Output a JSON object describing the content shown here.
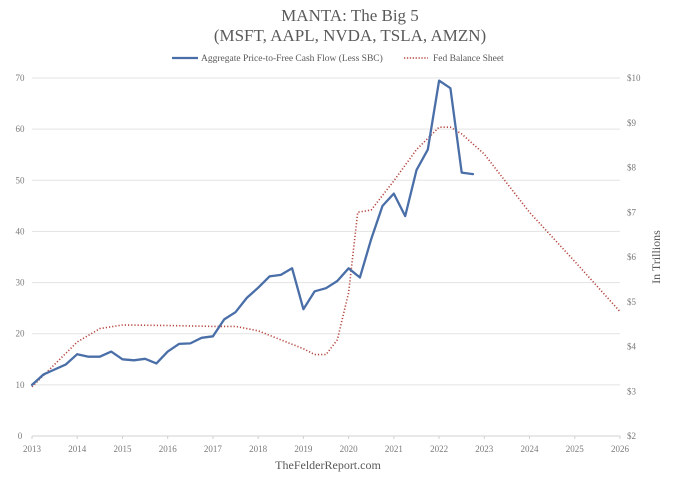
{
  "chart_data": {
    "type": "line",
    "title": "MANTA: The Big 5",
    "subtitle": "(MSFT, AAPL, NVDA, TSLA, AMZN)",
    "source": "TheFelderReport.com",
    "legend_position": "top-center",
    "grid": true,
    "x": {
      "range": [
        2013,
        2026
      ],
      "ticks": [
        "2013",
        "2014",
        "2015",
        "2016",
        "2017",
        "2018",
        "2019",
        "2020",
        "2021",
        "2022",
        "2023",
        "2024",
        "2025",
        "2026"
      ]
    },
    "y_left": {
      "label": "",
      "range": [
        0,
        70
      ],
      "ticks": [
        "0",
        "10",
        "20",
        "30",
        "40",
        "50",
        "60",
        "70"
      ]
    },
    "y_right": {
      "label": "In Trillions",
      "range": [
        2,
        10
      ],
      "ticks": [
        "$2",
        "$3",
        "$4",
        "$5",
        "$6",
        "$7",
        "$8",
        "$9",
        "$10"
      ]
    },
    "series": [
      {
        "name": "Aggregate Price-to-Free Cash Flow (Less SBC)",
        "axis": "left",
        "style": "solid",
        "color": "#4a6fa8",
        "points": [
          [
            2013.0,
            10.0
          ],
          [
            2013.25,
            12.0
          ],
          [
            2013.5,
            13.0
          ],
          [
            2013.75,
            14.0
          ],
          [
            2014.0,
            16.0
          ],
          [
            2014.25,
            15.5
          ],
          [
            2014.5,
            15.5
          ],
          [
            2014.75,
            16.5
          ],
          [
            2015.0,
            15.0
          ],
          [
            2015.25,
            14.8
          ],
          [
            2015.5,
            15.1
          ],
          [
            2015.75,
            14.2
          ],
          [
            2016.0,
            16.5
          ],
          [
            2016.25,
            18.0
          ],
          [
            2016.5,
            18.1
          ],
          [
            2016.75,
            19.2
          ],
          [
            2017.0,
            19.5
          ],
          [
            2017.25,
            22.8
          ],
          [
            2017.5,
            24.2
          ],
          [
            2017.75,
            27.0
          ],
          [
            2018.0,
            29.0
          ],
          [
            2018.25,
            31.2
          ],
          [
            2018.5,
            31.5
          ],
          [
            2018.75,
            32.8
          ],
          [
            2019.0,
            24.8
          ],
          [
            2019.25,
            28.3
          ],
          [
            2019.5,
            28.9
          ],
          [
            2019.75,
            30.3
          ],
          [
            2020.0,
            32.8
          ],
          [
            2020.25,
            31.0
          ],
          [
            2020.5,
            38.5
          ],
          [
            2020.75,
            45.0
          ],
          [
            2021.0,
            47.4
          ],
          [
            2021.25,
            43.0
          ],
          [
            2021.5,
            52.0
          ],
          [
            2021.75,
            56.0
          ],
          [
            2022.0,
            69.5
          ],
          [
            2022.25,
            68.0
          ],
          [
            2022.5,
            51.5
          ],
          [
            2022.75,
            51.2
          ]
        ]
      },
      {
        "name": "Fed Balance Sheet",
        "axis": "right",
        "style": "dotted",
        "color": "#b5463f",
        "points": [
          [
            2013.0,
            3.1
          ],
          [
            2013.5,
            3.6
          ],
          [
            2014.0,
            4.1
          ],
          [
            2014.5,
            4.4
          ],
          [
            2015.0,
            4.48
          ],
          [
            2016.0,
            4.47
          ],
          [
            2017.0,
            4.45
          ],
          [
            2017.5,
            4.45
          ],
          [
            2018.0,
            4.35
          ],
          [
            2018.5,
            4.15
          ],
          [
            2019.0,
            3.95
          ],
          [
            2019.25,
            3.82
          ],
          [
            2019.5,
            3.82
          ],
          [
            2019.75,
            4.15
          ],
          [
            2020.0,
            5.2
          ],
          [
            2020.2,
            7.0
          ],
          [
            2020.5,
            7.05
          ],
          [
            2021.0,
            7.7
          ],
          [
            2021.5,
            8.4
          ],
          [
            2022.0,
            8.9
          ],
          [
            2022.25,
            8.9
          ],
          [
            2022.5,
            8.75
          ],
          [
            2023.0,
            8.3
          ],
          [
            2024.0,
            7.0
          ],
          [
            2025.0,
            5.9
          ],
          [
            2026.0,
            4.78
          ]
        ]
      }
    ]
  }
}
